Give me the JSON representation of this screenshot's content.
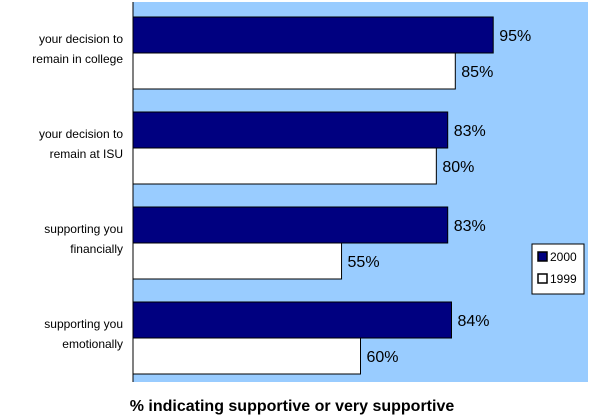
{
  "chart_data": {
    "type": "bar",
    "orientation": "horizontal",
    "categories": [
      [
        "your decision to",
        "remain in college"
      ],
      [
        "your decision to",
        "remain at ISU"
      ],
      [
        "supporting you",
        "financially"
      ],
      [
        "supporting you",
        "emotionally"
      ]
    ],
    "series": [
      {
        "name": "2000",
        "values": [
          95,
          83,
          83,
          84
        ],
        "labels": [
          "95%",
          "83%",
          "83%",
          "84%"
        ],
        "color": "#000080"
      },
      {
        "name": "1999",
        "values": [
          85,
          80,
          55,
          60
        ],
        "labels": [
          "85%",
          "80%",
          "55%",
          "60%"
        ],
        "color": "#ffffff"
      }
    ],
    "xlabel": "% indicating supportive or very supportive",
    "xlim": [
      0,
      120
    ],
    "plot_background": "#99ccff",
    "grid": false,
    "legend_position": "right"
  }
}
